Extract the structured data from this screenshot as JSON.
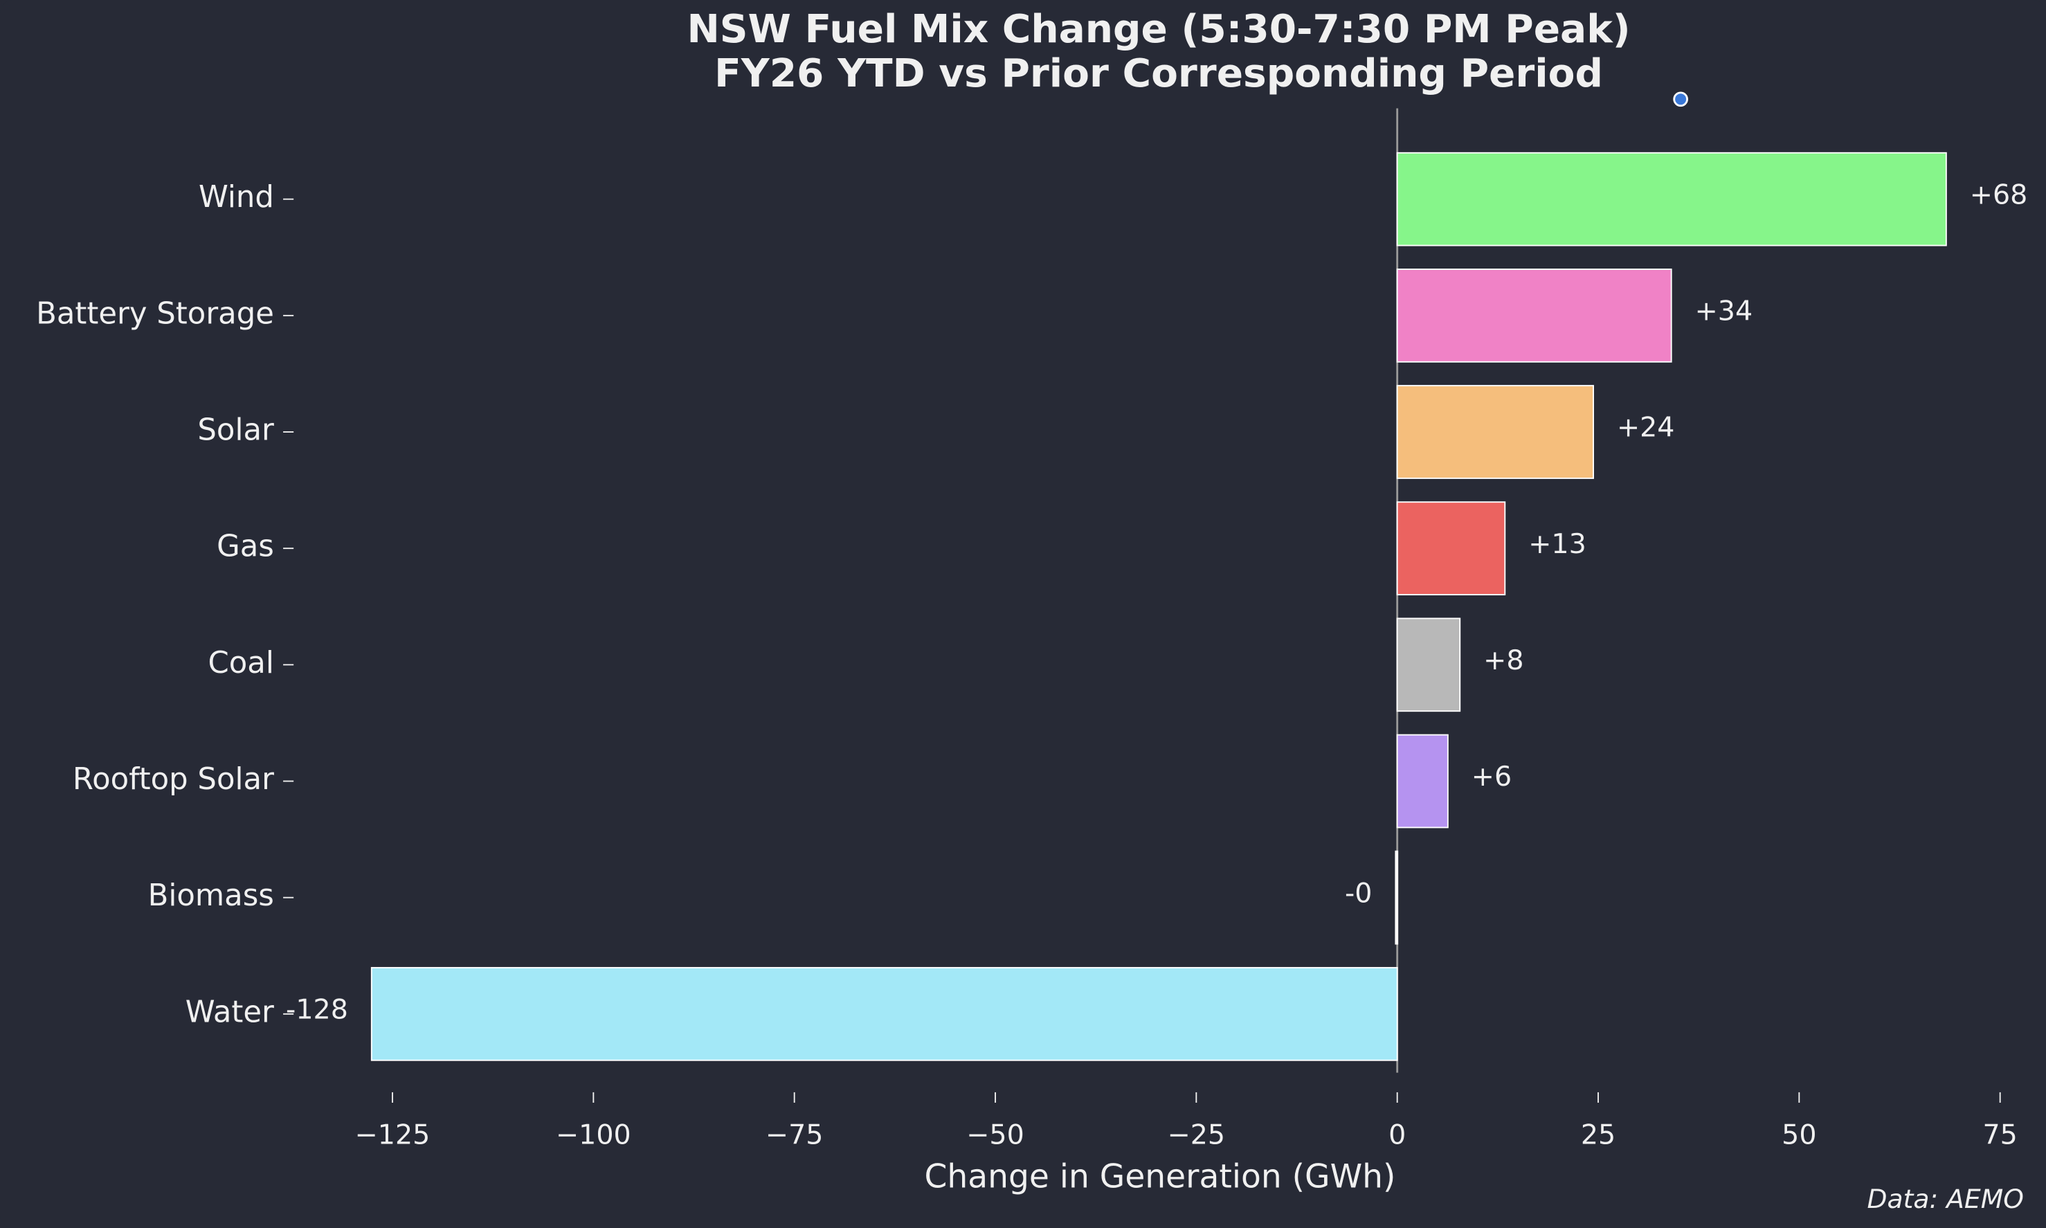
{
  "chart_data": {
    "type": "barh",
    "title": "NSW Fuel Mix Change (5:30-7:30 PM Peak)",
    "subtitle": "FY26 YTD vs Prior Corresponding Period",
    "xlabel": "Change in Generation (GWh)",
    "source": "Data: AEMO",
    "categories": [
      "Wind",
      "Battery Storage",
      "Solar",
      "Gas",
      "Coal",
      "Rooftop Solar",
      "Biomass",
      "Water"
    ],
    "values": [
      68.3,
      34.1,
      24.4,
      13.4,
      7.8,
      6.3,
      -0.2,
      -127.6
    ],
    "value_labels": [
      "+68",
      "+34",
      "+24",
      "+13",
      "+8",
      "+6",
      "-0",
      "-128"
    ],
    "colors": [
      "#86f58a",
      "#f082c6",
      "#f5be7c",
      "#eb6360",
      "#b8b8b8",
      "#b593f0",
      "#f4f4f4",
      "#a3e8f7"
    ],
    "xlim": [
      -137.3,
      78.6
    ],
    "xticks": [
      {
        "value": -125,
        "label": "−125"
      },
      {
        "value": -100,
        "label": "−100"
      },
      {
        "value": -75,
        "label": "−75"
      },
      {
        "value": -50,
        "label": "−50"
      },
      {
        "value": -25,
        "label": "−25"
      },
      0,
      25,
      50,
      75
    ],
    "grid": false
  }
}
